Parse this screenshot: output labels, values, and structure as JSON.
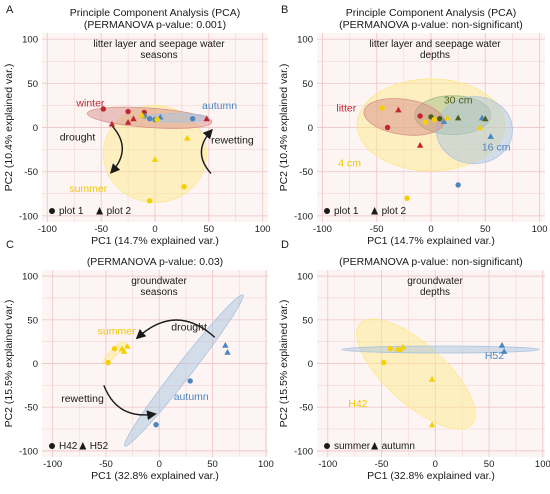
{
  "colors": {
    "plot_bg": "#fdf4f4",
    "grid": "#f0c9c9",
    "ellipse_red": "#d8908a",
    "ellipse_yellow": "#fde98a",
    "ellipse_blue": "#a9c4de",
    "ellipse_green": "#a6bf8a",
    "marker_red": "#c0272d",
    "marker_yellow": "#f5cf00",
    "marker_blue": "#4b86bf",
    "marker_green": "#4c5e22",
    "label_red": "#c0272d",
    "label_yellow": "#f0c800",
    "label_blue": "#4b86bf",
    "label_green": "#4c5e22",
    "text": "#1a1a1a"
  },
  "chart_data": [
    {
      "panel": "A",
      "type": "scatter",
      "title": "Principle Component Analysis (PCA)",
      "subtitle": "(PERMANOVA p-value: 0.001)",
      "annotation": [
        "litter layer and seepage water",
        "seasons"
      ],
      "xlabel": "PC1 (14.7% explained var.)",
      "ylabel": "PC2 (10.4% explained var.)",
      "xlim": [
        -105,
        105
      ],
      "ylim": [
        -107,
        107
      ],
      "xticks": [
        -100,
        -50,
        0,
        50,
        100
      ],
      "yticks": [
        100,
        50,
        0,
        -50,
        -100
      ],
      "grid": true,
      "legend": "bottom-left",
      "legend_items": [
        {
          "shape": "circle",
          "label": "plot 1"
        },
        {
          "shape": "triangle",
          "label": "plot 2"
        }
      ],
      "group_labels": [
        {
          "text": "winter",
          "x": -60,
          "y": 24,
          "color": "red"
        },
        {
          "text": "autumn",
          "x": 60,
          "y": 21,
          "color": "blue"
        },
        {
          "text": "drought",
          "x": -72,
          "y": -15,
          "color": "text"
        },
        {
          "text": "rewetting",
          "x": 72,
          "y": -18,
          "color": "text"
        },
        {
          "text": "summer",
          "x": -62,
          "y": -73,
          "color": "yellow"
        }
      ],
      "ellipses": [
        {
          "cx": 0,
          "cy": -30,
          "rx": 48,
          "ry": 55,
          "angle": 0,
          "color": "yellow"
        },
        {
          "cx": -5,
          "cy": 11,
          "rx": 58,
          "ry": 11,
          "angle": -4,
          "color": "red"
        },
        {
          "cx": 20,
          "cy": 11,
          "rx": 30,
          "ry": 5,
          "angle": 0,
          "color": "blue"
        }
      ],
      "arrows": [
        {
          "from": [
            -40,
            2
          ],
          "to": [
            -40,
            -50
          ],
          "bend": -0.45
        },
        {
          "from": [
            52,
            -52
          ],
          "to": [
            52,
            -4
          ],
          "bend": -0.45
        }
      ],
      "points": [
        {
          "x": -48,
          "y": 21,
          "shape": "circle",
          "color": "red"
        },
        {
          "x": -25,
          "y": 18,
          "shape": "circle",
          "color": "red"
        },
        {
          "x": -10,
          "y": 17,
          "shape": "circle",
          "color": "red"
        },
        {
          "x": -40,
          "y": 4,
          "shape": "triangle",
          "color": "red"
        },
        {
          "x": -25,
          "y": 6,
          "shape": "triangle",
          "color": "red"
        },
        {
          "x": -20,
          "y": 10,
          "shape": "triangle",
          "color": "red"
        },
        {
          "x": -10,
          "y": 13,
          "shape": "circle",
          "color": "blue"
        },
        {
          "x": -5,
          "y": 10,
          "shape": "circle",
          "color": "blue"
        },
        {
          "x": 0,
          "y": 9,
          "shape": "circle",
          "color": "blue"
        },
        {
          "x": 5,
          "y": 12,
          "shape": "triangle",
          "color": "blue"
        },
        {
          "x": 35,
          "y": 10,
          "shape": "circle",
          "color": "blue"
        },
        {
          "x": -12,
          "y": 14,
          "shape": "triangle",
          "color": "yellow"
        },
        {
          "x": 2,
          "y": 9,
          "shape": "circle",
          "color": "yellow"
        },
        {
          "x": 48,
          "y": 10,
          "shape": "triangle",
          "color": "red"
        },
        {
          "x": 30,
          "y": -12,
          "shape": "triangle",
          "color": "yellow"
        },
        {
          "x": 0,
          "y": -36,
          "shape": "triangle",
          "color": "yellow"
        },
        {
          "x": 27,
          "y": -67,
          "shape": "circle",
          "color": "yellow"
        },
        {
          "x": -5,
          "y": -83,
          "shape": "circle",
          "color": "yellow"
        }
      ]
    },
    {
      "panel": "B",
      "type": "scatter",
      "title": "Principle Component Analysis (PCA)",
      "subtitle": "(PERMANOVA p-value: non-significant)",
      "annotation": [
        "litter layer and seepage water",
        "depths"
      ],
      "xlabel": "PC1 (14.7% explained var.)",
      "ylabel": "PC2 (10.4% explained var.)",
      "xlim": [
        -105,
        105
      ],
      "ylim": [
        -107,
        107
      ],
      "xticks": [
        -100,
        -50,
        0,
        50,
        100
      ],
      "yticks": [
        100,
        50,
        0,
        -50,
        -100
      ],
      "grid": true,
      "legend": "bottom-left",
      "legend_items": [
        {
          "shape": "circle",
          "label": "plot 1"
        },
        {
          "shape": "triangle",
          "label": "plot 2"
        }
      ],
      "group_labels": [
        {
          "text": "litter",
          "x": -78,
          "y": 18,
          "color": "red"
        },
        {
          "text": "30 cm",
          "x": 25,
          "y": 27,
          "color": "green"
        },
        {
          "text": "16 cm",
          "x": 60,
          "y": -26,
          "color": "blue"
        },
        {
          "text": "4 cm",
          "x": -75,
          "y": -44,
          "color": "yellow"
        }
      ],
      "ellipses": [
        {
          "cx": 0,
          "cy": 3,
          "rx": 68,
          "ry": 52,
          "angle": 0,
          "color": "yellow"
        },
        {
          "cx": 20,
          "cy": 14,
          "rx": 35,
          "ry": 22,
          "angle": 0,
          "color": "green"
        },
        {
          "cx": 40,
          "cy": -3,
          "rx": 35,
          "ry": 38,
          "angle": 0,
          "color": "blue"
        },
        {
          "cx": -25,
          "cy": 12,
          "rx": 37,
          "ry": 20,
          "angle": -8,
          "color": "red"
        }
      ],
      "points": [
        {
          "x": -45,
          "y": 22,
          "shape": "circle",
          "color": "yellow"
        },
        {
          "x": -30,
          "y": 20,
          "shape": "triangle",
          "color": "red"
        },
        {
          "x": -40,
          "y": 0,
          "shape": "circle",
          "color": "red"
        },
        {
          "x": -10,
          "y": 13,
          "shape": "circle",
          "color": "red"
        },
        {
          "x": -10,
          "y": -20,
          "shape": "triangle",
          "color": "red"
        },
        {
          "x": -5,
          "y": 6,
          "shape": "circle",
          "color": "yellow"
        },
        {
          "x": 0,
          "y": 12,
          "shape": "circle",
          "color": "green"
        },
        {
          "x": 3,
          "y": 9,
          "shape": "circle",
          "color": "yellow"
        },
        {
          "x": 8,
          "y": 10,
          "shape": "circle",
          "color": "green"
        },
        {
          "x": 12,
          "y": 7,
          "shape": "triangle",
          "color": "blue"
        },
        {
          "x": 15,
          "y": 11,
          "shape": "triangle",
          "color": "yellow"
        },
        {
          "x": 25,
          "y": 11,
          "shape": "triangle",
          "color": "green"
        },
        {
          "x": 47,
          "y": 11,
          "shape": "triangle",
          "color": "blue"
        },
        {
          "x": 45,
          "y": 0,
          "shape": "triangle",
          "color": "yellow"
        },
        {
          "x": 50,
          "y": 10,
          "shape": "triangle",
          "color": "green"
        },
        {
          "x": 55,
          "y": -10,
          "shape": "triangle",
          "color": "blue"
        },
        {
          "x": 25,
          "y": -65,
          "shape": "circle",
          "color": "blue"
        },
        {
          "x": -22,
          "y": -80,
          "shape": "circle",
          "color": "yellow"
        }
      ]
    },
    {
      "panel": "C",
      "type": "scatter",
      "title": "",
      "subtitle": "(PERMANOVA p-value: 0.03)",
      "annotation": [
        "groundwater",
        "seasons"
      ],
      "xlabel": "PC1 (32.8% explained var.)",
      "ylabel": "PC2 (15.5% explained var.)",
      "xlim": [
        -110,
        102
      ],
      "ylim": [
        -107,
        107
      ],
      "xticks": [
        -100,
        -50,
        0,
        50,
        100
      ],
      "yticks": [
        100,
        50,
        0,
        -50,
        -100
      ],
      "grid": true,
      "legend": "bottom-left",
      "legend_items": [
        {
          "shape": "circle",
          "label": "H42"
        },
        {
          "shape": "triangle",
          "label": "H52"
        }
      ],
      "group_labels": [
        {
          "text": "summer",
          "x": -40,
          "y": 33,
          "color": "yellow"
        },
        {
          "text": "autumn",
          "x": 30,
          "y": -42,
          "color": "blue"
        },
        {
          "text": "drought",
          "x": 28,
          "y": 38,
          "color": "text"
        },
        {
          "text": "rewetting",
          "x": -72,
          "y": -44,
          "color": "text"
        }
      ],
      "ellipses": [
        {
          "cx": 23,
          "cy": -8,
          "rx": 90,
          "ry": 9,
          "angle": 52,
          "color": "blue"
        },
        {
          "cx": -42,
          "cy": 13,
          "rx": 14,
          "ry": 4,
          "angle": 45,
          "color": "yellow"
        }
      ],
      "arrows": [
        {
          "from": [
            52,
            30
          ],
          "to": [
            -20,
            30
          ],
          "bend": 0.45
        },
        {
          "from": [
            -52,
            -25
          ],
          "to": [
            -5,
            -58
          ],
          "bend": 0.4
        }
      ],
      "points": [
        {
          "x": -42,
          "y": 17,
          "shape": "circle",
          "color": "yellow"
        },
        {
          "x": -35,
          "y": 17,
          "shape": "triangle",
          "color": "yellow"
        },
        {
          "x": -30,
          "y": 20,
          "shape": "triangle",
          "color": "yellow"
        },
        {
          "x": -33,
          "y": 14,
          "shape": "triangle",
          "color": "yellow"
        },
        {
          "x": -48,
          "y": 1,
          "shape": "circle",
          "color": "yellow"
        },
        {
          "x": 62,
          "y": 21,
          "shape": "triangle",
          "color": "blue"
        },
        {
          "x": 64,
          "y": 13,
          "shape": "triangle",
          "color": "blue"
        },
        {
          "x": 29,
          "y": -20,
          "shape": "circle",
          "color": "blue"
        },
        {
          "x": -3,
          "y": -70,
          "shape": "circle",
          "color": "blue"
        }
      ]
    },
    {
      "panel": "D",
      "type": "scatter",
      "title": "",
      "subtitle": "(PERMANOVA p-value: non-significant)",
      "annotation": [
        "groundwater",
        "depths"
      ],
      "xlabel": "PC1 (32.8% explained var.)",
      "ylabel": "PC2 (15.5% explained var.)",
      "xlim": [
        -110,
        102
      ],
      "ylim": [
        -107,
        107
      ],
      "xticks": [
        -100,
        -50,
        0,
        50,
        100
      ],
      "yticks": [
        100,
        50,
        0,
        -50,
        -100
      ],
      "grid": true,
      "legend": "bottom-left",
      "legend_items": [
        {
          "shape": "circle",
          "label": "summer"
        },
        {
          "shape": "triangle",
          "label": "autumn"
        }
      ],
      "group_labels": [
        {
          "text": "H52",
          "x": 55,
          "y": 5,
          "color": "blue"
        },
        {
          "text": "H42",
          "x": -72,
          "y": -50,
          "color": "yellow"
        }
      ],
      "ellipses": [
        {
          "cx": -18,
          "cy": -12,
          "rx": 70,
          "ry": 34,
          "angle": -42,
          "color": "yellow"
        },
        {
          "cx": 5,
          "cy": 16,
          "rx": 92,
          "ry": 4,
          "angle": 0,
          "color": "blue"
        }
      ],
      "points": [
        {
          "x": -42,
          "y": 17,
          "shape": "circle",
          "color": "yellow"
        },
        {
          "x": -35,
          "y": 17,
          "shape": "triangle",
          "color": "yellow"
        },
        {
          "x": -33,
          "y": 16,
          "shape": "triangle",
          "color": "yellow"
        },
        {
          "x": -30,
          "y": 19,
          "shape": "triangle",
          "color": "yellow"
        },
        {
          "x": -48,
          "y": 1,
          "shape": "circle",
          "color": "yellow"
        },
        {
          "x": -3,
          "y": -18,
          "shape": "triangle",
          "color": "yellow"
        },
        {
          "x": -3,
          "y": -70,
          "shape": "triangle",
          "color": "yellow"
        },
        {
          "x": 62,
          "y": 21,
          "shape": "triangle",
          "color": "blue"
        },
        {
          "x": 64,
          "y": 14,
          "shape": "triangle",
          "color": "blue"
        }
      ]
    }
  ]
}
